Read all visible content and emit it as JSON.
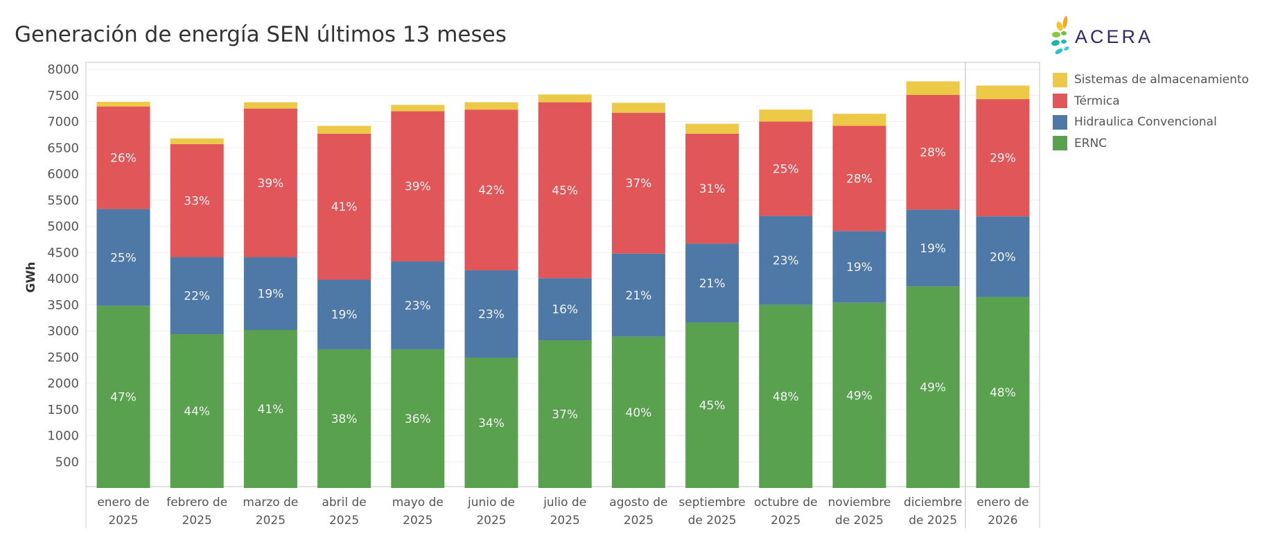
{
  "title": "Generación de energía SEN últimos 13 meses",
  "logo_text": "ACERA",
  "legend": [
    {
      "name": "Sistemas de almacenamiento",
      "color": "#EDC948"
    },
    {
      "name": "Térmica",
      "color": "#E15759"
    },
    {
      "name": "Hidraulica Convencional",
      "color": "#4E79A7"
    },
    {
      "name": "ERNC",
      "color": "#59A14F"
    }
  ],
  "chart_data": {
    "type": "bar",
    "stacked": true,
    "title": "Generación de energía SEN últimos 13 meses",
    "ylabel": "GWh",
    "xlabel": "",
    "ylim": [
      0,
      8000
    ],
    "yticks": [
      500,
      1000,
      1500,
      2000,
      2500,
      3000,
      3500,
      4000,
      4500,
      5000,
      5500,
      6000,
      6500,
      7000,
      7500,
      8000
    ],
    "grid": true,
    "legend_position": "right",
    "categories": [
      [
        "enero de",
        "2025"
      ],
      [
        "febrero de",
        "2025"
      ],
      [
        "marzo de",
        "2025"
      ],
      [
        "abril de",
        "2025"
      ],
      [
        "mayo de",
        "2025"
      ],
      [
        "junio de",
        "2025"
      ],
      [
        "julio de",
        "2025"
      ],
      [
        "agosto de",
        "2025"
      ],
      [
        "septiembre",
        "de 2025"
      ],
      [
        "octubre de",
        "2025"
      ],
      [
        "noviembre",
        "de 2025"
      ],
      [
        "diciembre",
        "de 2025"
      ],
      [
        "enero de",
        "2026"
      ]
    ],
    "series": [
      {
        "name": "ERNC",
        "color": "#59A14F",
        "values": [
          3480,
          2940,
          3020,
          2650,
          2650,
          2490,
          2820,
          2890,
          3160,
          3500,
          3540,
          3850,
          3650
        ],
        "labels": [
          "47%",
          "44%",
          "41%",
          "38%",
          "36%",
          "34%",
          "37%",
          "40%",
          "45%",
          "48%",
          "49%",
          "49%",
          "48%"
        ]
      },
      {
        "name": "Hidraulica Convencional",
        "color": "#4E79A7",
        "values": [
          1850,
          1470,
          1390,
          1330,
          1680,
          1670,
          1190,
          1590,
          1510,
          1700,
          1370,
          1470,
          1540
        ],
        "labels": [
          "25%",
          "22%",
          "19%",
          "19%",
          "23%",
          "23%",
          "16%",
          "21%",
          "21%",
          "23%",
          "19%",
          "19%",
          "20%"
        ]
      },
      {
        "name": "Térmica",
        "color": "#E15759",
        "values": [
          1960,
          2160,
          2840,
          2790,
          2870,
          3070,
          3360,
          2690,
          2100,
          1800,
          2010,
          2190,
          2240
        ],
        "labels": [
          "26%",
          "33%",
          "39%",
          "41%",
          "39%",
          "42%",
          "45%",
          "37%",
          "31%",
          "25%",
          "28%",
          "28%",
          "29%"
        ]
      },
      {
        "name": "Sistemas de almacenamiento",
        "color": "#EDC948",
        "values": [
          90,
          110,
          120,
          150,
          120,
          140,
          150,
          190,
          190,
          230,
          230,
          260,
          260
        ],
        "labels": [
          "",
          "",
          "",
          "",
          "",
          "",
          "",
          "",
          "",
          "",
          "",
          "",
          ""
        ]
      }
    ]
  }
}
